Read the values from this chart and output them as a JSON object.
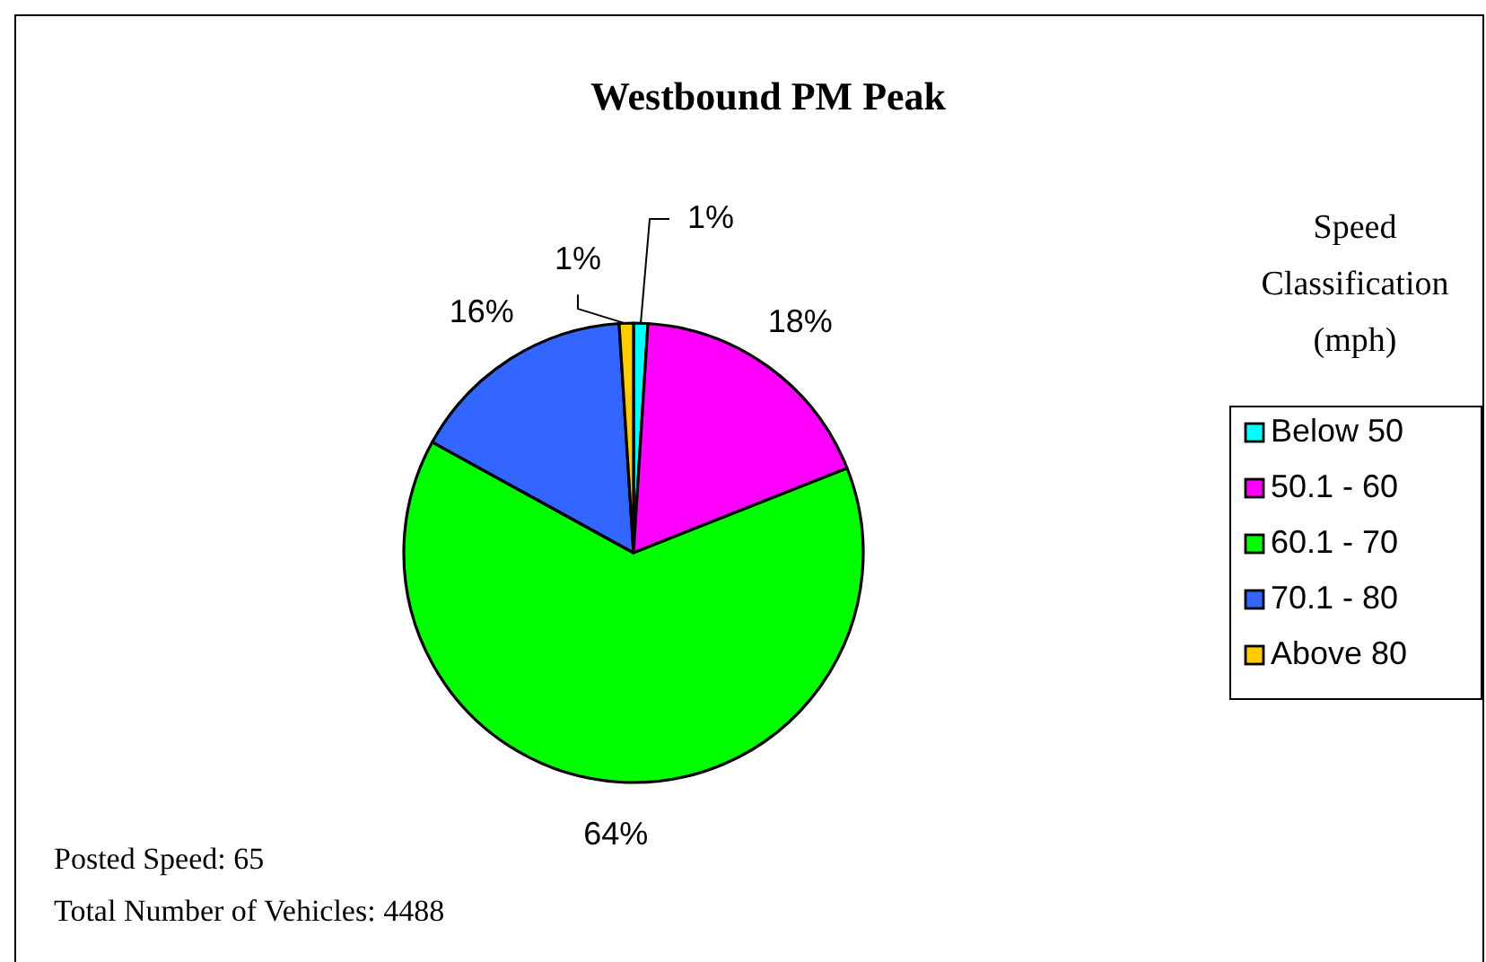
{
  "chart_data": {
    "type": "pie",
    "title": "Westbound PM Peak",
    "legend_title": "Speed Classification (mph)",
    "categories": [
      "Below 50",
      "50.1 - 60",
      "60.1 - 70",
      "70.1 - 80",
      "Above 80"
    ],
    "values": [
      1,
      18,
      64,
      16,
      1
    ],
    "colors": [
      "#00ffff",
      "#ff00ff",
      "#00ff00",
      "#3366ff",
      "#ffcc00"
    ],
    "value_labels": [
      "1%",
      "18%",
      "64%",
      "16%",
      "1%"
    ],
    "legend": "right",
    "annotations": [
      "Posted Speed: 65",
      "Total Number of Vehicles: 4488"
    ]
  }
}
